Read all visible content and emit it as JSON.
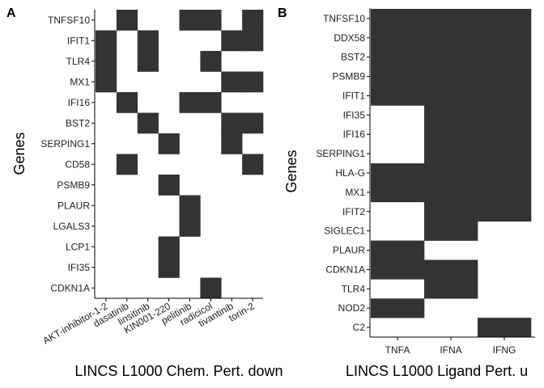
{
  "chart_data": [
    {
      "type": "heatmap",
      "panel_label": "A",
      "xlabel": "LINCS L1000 Chem. Pert. down",
      "ylabel": "Genes",
      "x_categories": [
        "AKT-inhibitor-1-2",
        "dasatinib",
        "linsitinib",
        "KIN001-220",
        "pelitinib",
        "radicicol",
        "tivantinib",
        "torin-2"
      ],
      "y_categories": [
        "TNFSF10",
        "IFIT1",
        "TLR4",
        "MX1",
        "IFI16",
        "BST2",
        "SERPING1",
        "CD58",
        "PSMB9",
        "PLAUR",
        "LGALS3",
        "LCP1",
        "IFI35",
        "CDKN1A"
      ],
      "matrix": [
        [
          0,
          1,
          0,
          0,
          1,
          1,
          0,
          1
        ],
        [
          1,
          0,
          1,
          0,
          0,
          0,
          1,
          1
        ],
        [
          1,
          0,
          1,
          0,
          0,
          1,
          0,
          0
        ],
        [
          1,
          0,
          0,
          0,
          0,
          0,
          1,
          1
        ],
        [
          0,
          1,
          0,
          0,
          1,
          1,
          0,
          0
        ],
        [
          0,
          0,
          1,
          0,
          0,
          0,
          1,
          1
        ],
        [
          0,
          0,
          0,
          1,
          0,
          0,
          1,
          0
        ],
        [
          0,
          1,
          0,
          0,
          0,
          0,
          0,
          1
        ],
        [
          0,
          0,
          0,
          1,
          0,
          0,
          0,
          0
        ],
        [
          0,
          0,
          0,
          0,
          1,
          0,
          0,
          0
        ],
        [
          0,
          0,
          0,
          0,
          1,
          0,
          0,
          0
        ],
        [
          0,
          0,
          0,
          1,
          0,
          0,
          0,
          0
        ],
        [
          0,
          0,
          0,
          1,
          0,
          0,
          0,
          0
        ],
        [
          0,
          0,
          0,
          0,
          0,
          1,
          0,
          0
        ]
      ],
      "fill_color": "#333333"
    },
    {
      "type": "heatmap",
      "panel_label": "B",
      "xlabel": "LINCS L1000 Ligand Pert. u",
      "ylabel": "Genes",
      "x_categories": [
        "TNFA",
        "IFNA",
        "IFNG"
      ],
      "y_categories": [
        "TNFSF10",
        "DDX58",
        "BST2",
        "PSMB9",
        "IFIT1",
        "IFI35",
        "IFI16",
        "SERPING1",
        "HLA-G",
        "MX1",
        "IFIT2",
        "SIGLEC1",
        "PLAUR",
        "CDKN1A",
        "TLR4",
        "NOD2",
        "C2"
      ],
      "matrix": [
        [
          1,
          1,
          1
        ],
        [
          1,
          1,
          1
        ],
        [
          1,
          1,
          1
        ],
        [
          1,
          1,
          1
        ],
        [
          1,
          1,
          1
        ],
        [
          0,
          1,
          1
        ],
        [
          0,
          1,
          1
        ],
        [
          0,
          1,
          1
        ],
        [
          1,
          1,
          1
        ],
        [
          1,
          1,
          1
        ],
        [
          0,
          1,
          1
        ],
        [
          0,
          1,
          0
        ],
        [
          1,
          0,
          0
        ],
        [
          1,
          1,
          0
        ],
        [
          0,
          1,
          0
        ],
        [
          1,
          0,
          0
        ],
        [
          0,
          0,
          1
        ]
      ],
      "fill_color": "#333333"
    }
  ]
}
